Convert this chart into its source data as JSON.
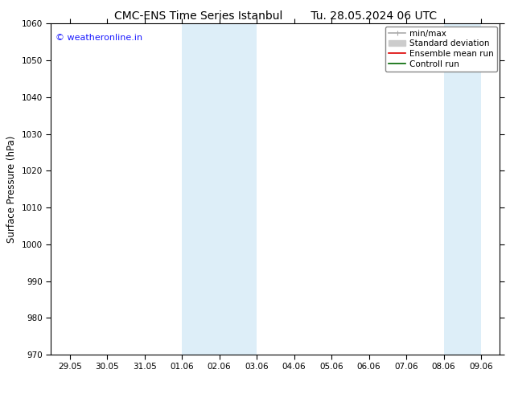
{
  "title_left": "CMC-ENS Time Series Istanbul",
  "title_right": "Tu. 28.05.2024 06 UTC",
  "ylabel": "Surface Pressure (hPa)",
  "ylim": [
    970,
    1060
  ],
  "yticks": [
    970,
    980,
    990,
    1000,
    1010,
    1020,
    1030,
    1040,
    1050,
    1060
  ],
  "xtick_labels": [
    "29.05",
    "30.05",
    "31.05",
    "01.06",
    "02.06",
    "03.06",
    "04.06",
    "05.06",
    "06.06",
    "07.06",
    "08.06",
    "09.06"
  ],
  "xtick_positions": [
    0,
    1,
    2,
    3,
    4,
    5,
    6,
    7,
    8,
    9,
    10,
    11
  ],
  "xlim": [
    -0.5,
    11.5
  ],
  "shaded_bands": [
    {
      "x_start": 3.0,
      "x_end": 4.0
    },
    {
      "x_start": 4.0,
      "x_end": 5.0
    },
    {
      "x_start": 10.0,
      "x_end": 11.0
    }
  ],
  "shaded_color": "#ddeef8",
  "background_color": "#ffffff",
  "plot_bg_color": "#ffffff",
  "watermark": "© weatheronline.in",
  "watermark_color": "#1a1aff",
  "legend_items": [
    {
      "label": "min/max",
      "color": "#aaaaaa",
      "lw": 1.2
    },
    {
      "label": "Standard deviation",
      "color": "#cccccc",
      "lw": 5
    },
    {
      "label": "Ensemble mean run",
      "color": "#dd0000",
      "lw": 1.2
    },
    {
      "label": "Controll run",
      "color": "#006600",
      "lw": 1.2
    }
  ],
  "title_fontsize": 10,
  "tick_fontsize": 7.5,
  "ylabel_fontsize": 8.5,
  "watermark_fontsize": 8,
  "legend_fontsize": 7.5
}
